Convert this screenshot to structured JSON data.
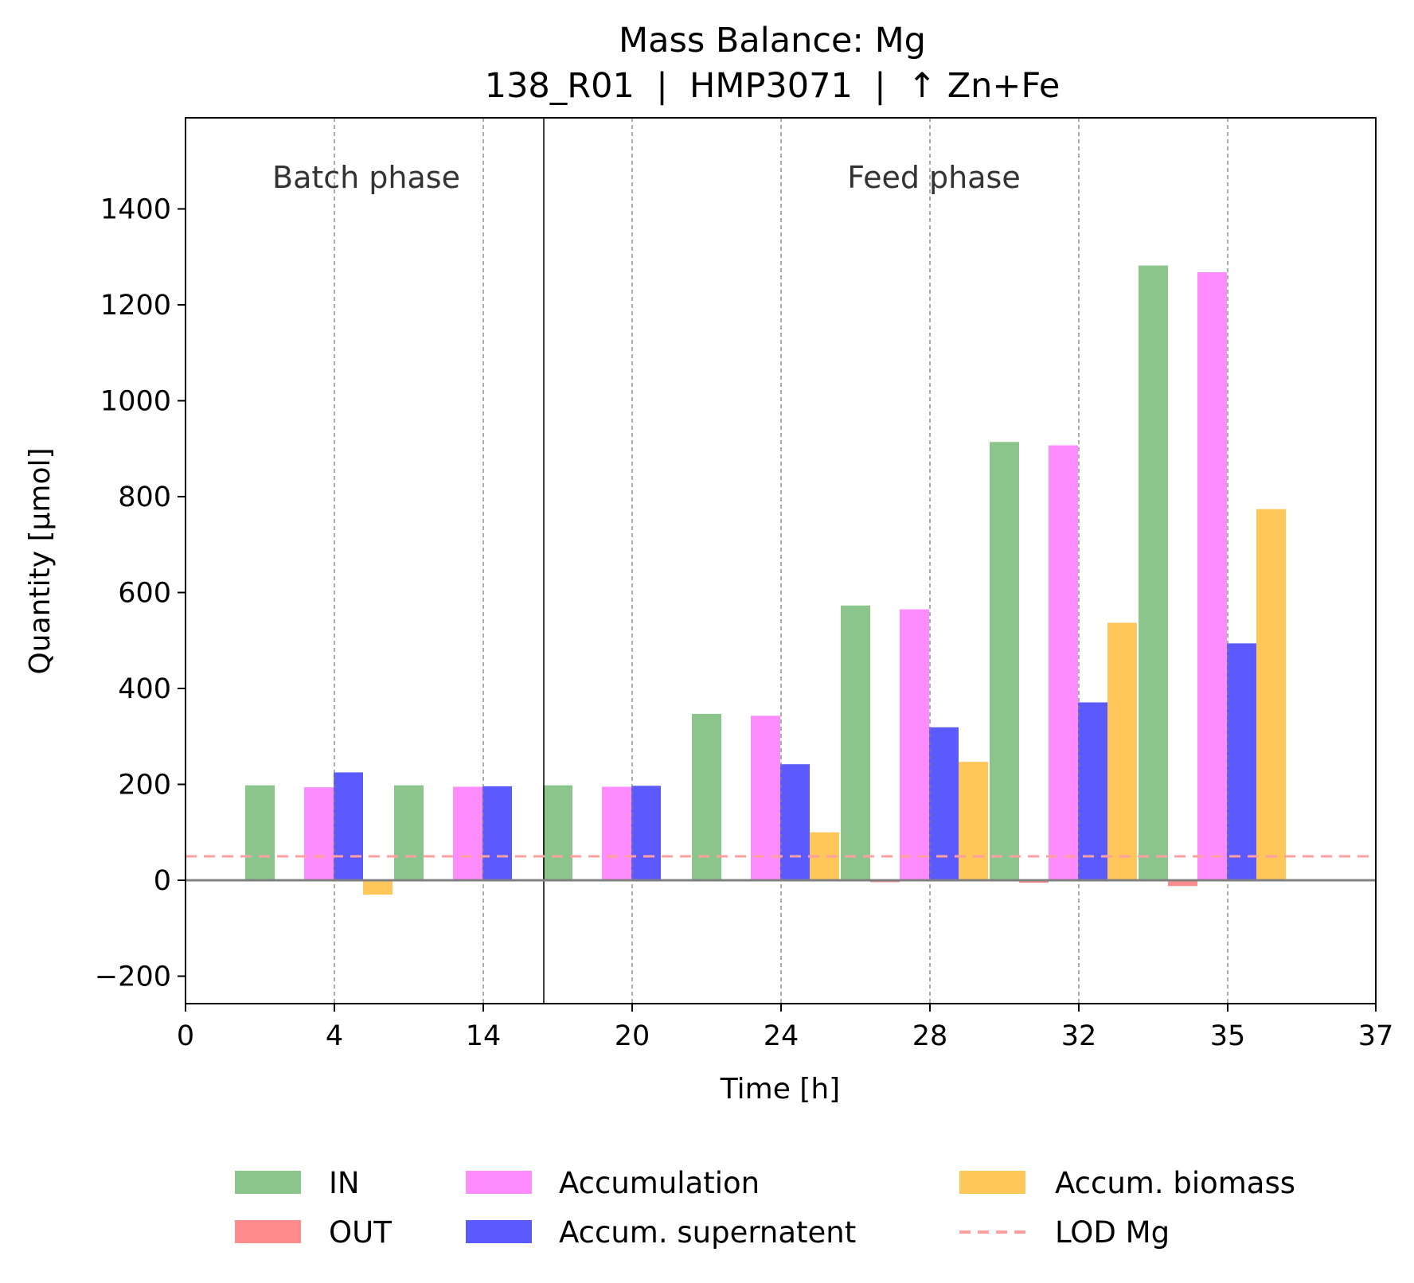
{
  "chart_data": {
    "type": "bar",
    "title": "Mass Balance: Mg",
    "subtitle": "138_R01  |  HMP3071  |  ↑ Zn+Fe",
    "xlabel": "Time [h]",
    "ylabel": "Quantity [µmol]",
    "ylim": [
      -225,
      1400
    ],
    "y_ticks": [
      "−200",
      "0",
      "200",
      "400",
      "600",
      "800",
      "1000",
      "1200",
      "1400"
    ],
    "y_tick_values": [
      -200,
      0,
      200,
      400,
      600,
      800,
      1000,
      1200,
      1400
    ],
    "x_ticks": [
      "0",
      "4",
      "14",
      "20",
      "24",
      "28",
      "32",
      "35",
      "37"
    ],
    "grid": "dashed vertical lines at sample times",
    "phase_labels": [
      "Batch phase",
      "Feed phase"
    ],
    "categories": [
      "4",
      "14",
      "20",
      "24",
      "28",
      "32",
      "35"
    ],
    "series": [
      {
        "name": "IN",
        "color": "#8cc58c",
        "values": [
          198,
          198,
          198,
          347,
          573,
          914,
          1282
        ]
      },
      {
        "name": "OUT",
        "color": "#ff8c8c",
        "values": [
          -2,
          -2,
          -2,
          -2,
          -4,
          -5,
          -12
        ]
      },
      {
        "name": "Accumulation",
        "color": "#ff8cff",
        "values": [
          194,
          195,
          195,
          343,
          565,
          907,
          1268
        ]
      },
      {
        "name": "Accum. supernatent",
        "color": "#5a5aff",
        "values": [
          225,
          196,
          197,
          242,
          319,
          371,
          494
        ]
      },
      {
        "name": "Accum. biomass",
        "color": "#ffc65a",
        "values": [
          -30,
          0,
          0,
          100,
          247,
          537,
          774
        ]
      }
    ],
    "lod": {
      "name": "LOD Mg",
      "value": 50,
      "color": "#ffa0a0",
      "style": "dashed"
    },
    "legend_placement": "below plot"
  }
}
